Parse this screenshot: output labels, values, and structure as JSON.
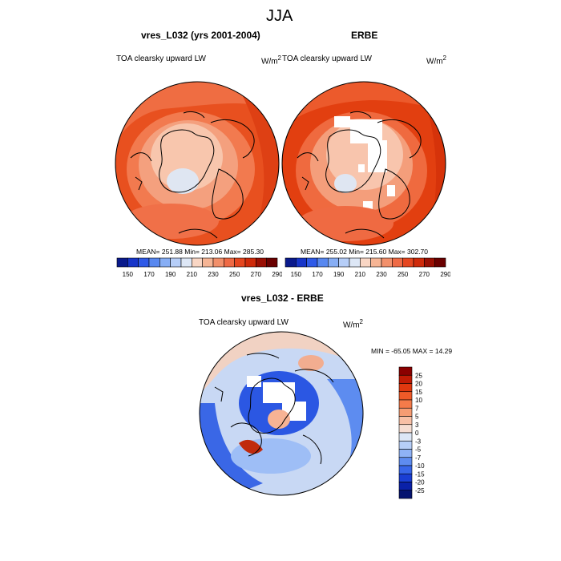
{
  "page": {
    "title": "JJA"
  },
  "panels": [
    {
      "title": "vres_L032 (yrs 2001-2004)",
      "left_label": "TOA clearsky upward LW",
      "units": "W/m",
      "units_sup": "2",
      "stats": "MEAN= 251.88  Min= 213.06  Max= 285.30"
    },
    {
      "title": "ERBE",
      "left_label": "TOA clearsky upward LW",
      "units": "W/m",
      "units_sup": "2",
      "stats": "MEAN= 255.02  Min= 215.60  Max= 302.70"
    }
  ],
  "diff": {
    "title": "vres_L032 - ERBE",
    "left_label": "TOA clearsky upward LW",
    "units": "W/m",
    "units_sup": "2",
    "stats": "MIN = -65.05 MAX =  14.29"
  },
  "colorbar_top": {
    "labels": [
      "150",
      "170",
      "190",
      "210",
      "230",
      "250",
      "270",
      "290"
    ],
    "colors": [
      "#0a1a8c",
      "#1735c9",
      "#2f5ae8",
      "#5888f0",
      "#87aef5",
      "#b6cef8",
      "#dde7f6",
      "#f9d6c4",
      "#f6b595",
      "#f2906b",
      "#ef6a45",
      "#e5461f",
      "#cf2a0a",
      "#9a0f03",
      "#6a0000"
    ]
  },
  "colorbar_diff": {
    "labels": [
      "25",
      "20",
      "15",
      "10",
      "7",
      "5",
      "3",
      "0",
      "-3",
      "-5",
      "-7",
      "-10",
      "-15",
      "-20",
      "-25"
    ],
    "colors": [
      "#8b0000",
      "#c11b05",
      "#e0380f",
      "#f05a28",
      "#f47b4a",
      "#f69c73",
      "#f8c0a6",
      "#f6ded3",
      "#dde7f6",
      "#b6cef8",
      "#8fb2f6",
      "#5e8cf0",
      "#3866e9",
      "#1a3ed4",
      "#0a21a8",
      "#051470"
    ]
  }
}
